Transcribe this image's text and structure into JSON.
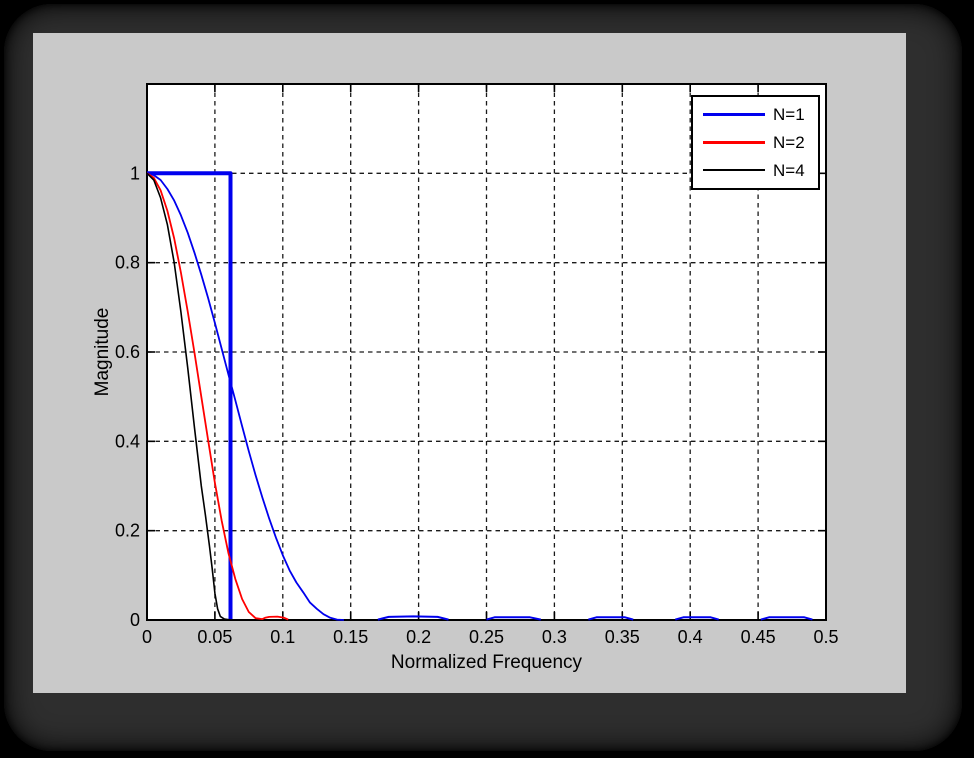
{
  "window": {
    "page_background": "#000000",
    "slab_color": "#2e2e2e",
    "figure_background": "#c9c9c9",
    "plot_background": "#ffffff"
  },
  "chart_data": {
    "type": "line",
    "title": "",
    "xlabel": "Normalized Frequency",
    "ylabel": "Magnitude",
    "xlim": [
      0,
      0.5
    ],
    "ylim": [
      0,
      1.2
    ],
    "grid": true,
    "grid_style": "dashed",
    "grid_color": "#1a1a1a",
    "axes_color": "#000000",
    "tick_length": 8,
    "xticks": {
      "values": [
        0,
        0.05,
        0.1,
        0.15,
        0.2,
        0.25,
        0.3,
        0.35,
        0.4,
        0.45,
        0.5
      ],
      "labels": [
        "0",
        "0.05",
        "0.1",
        "0.15",
        "0.2",
        "0.25",
        "0.3",
        "0.35",
        "0.4",
        "0.45",
        "0.5"
      ]
    },
    "yticks": {
      "values": [
        0,
        0.2,
        0.4,
        0.6,
        0.8,
        1
      ],
      "labels": [
        "0",
        "0.2",
        "0.4",
        "0.6",
        "0.8",
        "1"
      ]
    },
    "legend": {
      "position": "top-right",
      "entries": [
        {
          "label": "N=1",
          "color": "#0000ee",
          "line_width": 3
        },
        {
          "label": "N=2",
          "color": "#ff0000",
          "line_width": 3
        },
        {
          "label": "N=4",
          "color": "#000000",
          "line_width": 2
        }
      ]
    },
    "series": [
      {
        "name": "ideal-lowpass-rect",
        "legend": "N=1",
        "color": "#0000ee",
        "width": 4,
        "points": [
          [
            0,
            1
          ],
          [
            0.0615,
            1
          ],
          [
            0.0615,
            0.002
          ]
        ]
      },
      {
        "name": "N=1-mainlobe",
        "legend": "N=1",
        "color": "#0000ee",
        "width": 1.8,
        "points": [
          [
            0,
            1
          ],
          [
            0.005,
            0.996
          ],
          [
            0.01,
            0.985
          ],
          [
            0.015,
            0.965
          ],
          [
            0.02,
            0.939
          ],
          [
            0.025,
            0.906
          ],
          [
            0.03,
            0.867
          ],
          [
            0.035,
            0.822
          ],
          [
            0.04,
            0.773
          ],
          [
            0.045,
            0.721
          ],
          [
            0.05,
            0.665
          ],
          [
            0.055,
            0.607
          ],
          [
            0.06,
            0.549
          ],
          [
            0.065,
            0.492
          ],
          [
            0.07,
            0.434
          ],
          [
            0.075,
            0.378
          ],
          [
            0.08,
            0.324
          ],
          [
            0.085,
            0.274
          ],
          [
            0.09,
            0.227
          ],
          [
            0.095,
            0.184
          ],
          [
            0.1,
            0.145
          ],
          [
            0.105,
            0.111
          ],
          [
            0.11,
            0.084
          ],
          [
            0.115,
            0.062
          ],
          [
            0.12,
            0.039
          ],
          [
            0.125,
            0.025
          ],
          [
            0.13,
            0.013
          ],
          [
            0.135,
            0.005
          ],
          [
            0.14,
            0.001
          ],
          [
            0.145,
            0
          ]
        ]
      },
      {
        "name": "N=1-sidelobe-1",
        "legend": "N=1",
        "color": "#0000ee",
        "width": 2,
        "points": [
          [
            0.17,
            0.001
          ],
          [
            0.178,
            0.007
          ],
          [
            0.196,
            0.008
          ],
          [
            0.214,
            0.007
          ],
          [
            0.222,
            0.001
          ]
        ]
      },
      {
        "name": "N=1-sidelobe-2",
        "legend": "N=1",
        "color": "#0000ee",
        "width": 2,
        "points": [
          [
            0.25,
            0.001
          ],
          [
            0.256,
            0.006
          ],
          [
            0.282,
            0.006
          ],
          [
            0.29,
            0.001
          ]
        ]
      },
      {
        "name": "N=1-sidelobe-3",
        "legend": "N=1",
        "color": "#0000ee",
        "width": 2,
        "points": [
          [
            0.325,
            0.001
          ],
          [
            0.331,
            0.006
          ],
          [
            0.352,
            0.006
          ],
          [
            0.358,
            0.001
          ]
        ]
      },
      {
        "name": "N=1-sidelobe-4",
        "legend": "N=1",
        "color": "#0000ee",
        "width": 2,
        "points": [
          [
            0.389,
            0.001
          ],
          [
            0.395,
            0.006
          ],
          [
            0.415,
            0.006
          ],
          [
            0.421,
            0.001
          ]
        ]
      },
      {
        "name": "N=1-sidelobe-5",
        "legend": "N=1",
        "color": "#0000ee",
        "width": 2,
        "points": [
          [
            0.452,
            0.001
          ],
          [
            0.458,
            0.006
          ],
          [
            0.484,
            0.006
          ],
          [
            0.49,
            0.001
          ]
        ]
      },
      {
        "name": "N=2",
        "legend": "N=2",
        "color": "#ff0000",
        "width": 1.8,
        "points": [
          [
            0,
            1
          ],
          [
            0.005,
            0.99
          ],
          [
            0.01,
            0.962
          ],
          [
            0.015,
            0.916
          ],
          [
            0.02,
            0.854
          ],
          [
            0.025,
            0.778
          ],
          [
            0.03,
            0.691
          ],
          [
            0.035,
            0.598
          ],
          [
            0.04,
            0.5
          ],
          [
            0.045,
            0.403
          ],
          [
            0.05,
            0.307
          ],
          [
            0.055,
            0.222
          ],
          [
            0.06,
            0.149
          ],
          [
            0.065,
            0.092
          ],
          [
            0.07,
            0.047
          ],
          [
            0.075,
            0.018
          ],
          [
            0.08,
            0.004
          ],
          [
            0.085,
            0.002
          ],
          [
            0.087,
            0.005
          ],
          [
            0.09,
            0.007
          ],
          [
            0.096,
            0.0075
          ],
          [
            0.101,
            0.005
          ],
          [
            0.104,
            0.001
          ]
        ]
      },
      {
        "name": "N=4",
        "legend": "N=4",
        "color": "#000000",
        "width": 1.6,
        "points": [
          [
            0,
            1
          ],
          [
            0.005,
            0.985
          ],
          [
            0.01,
            0.945
          ],
          [
            0.015,
            0.885
          ],
          [
            0.02,
            0.8
          ],
          [
            0.025,
            0.69
          ],
          [
            0.03,
            0.565
          ],
          [
            0.035,
            0.43
          ],
          [
            0.04,
            0.3
          ],
          [
            0.043,
            0.235
          ],
          [
            0.046,
            0.165
          ],
          [
            0.048,
            0.115
          ],
          [
            0.05,
            0.06
          ],
          [
            0.052,
            0.025
          ],
          [
            0.054,
            0.008
          ],
          [
            0.057,
            0.002
          ],
          [
            0.062,
            0
          ]
        ]
      }
    ]
  }
}
